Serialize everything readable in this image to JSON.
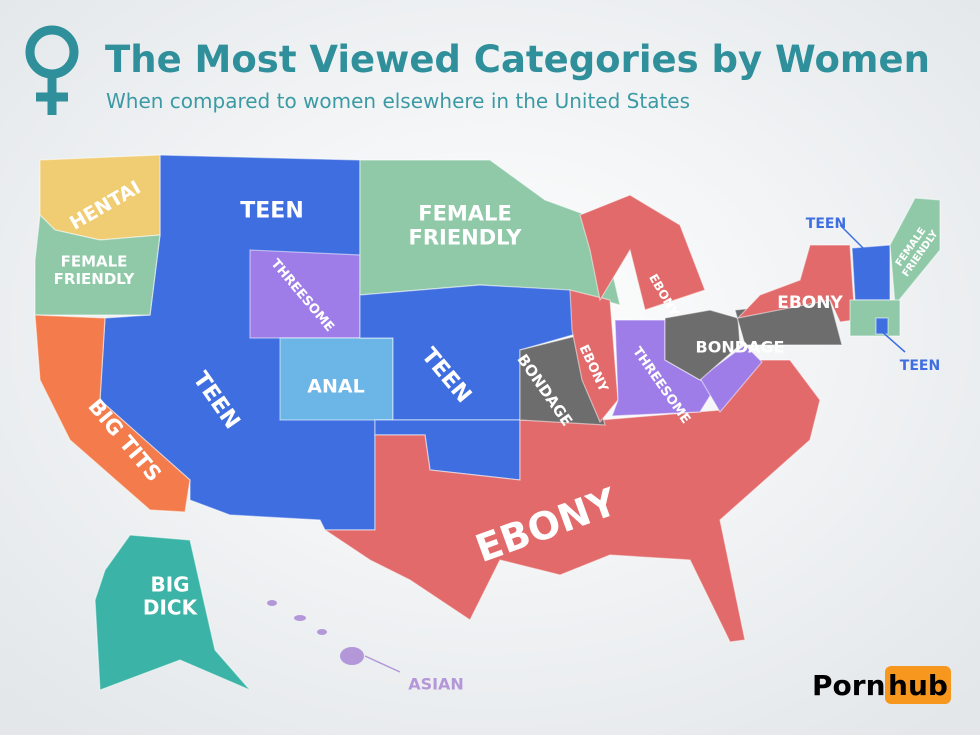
{
  "header": {
    "title": "The Most Viewed Categories by Women",
    "subtitle": "When compared to women elsewhere in the United States"
  },
  "labels": [
    {
      "lines": [
        "HENTAI"
      ]
    },
    {
      "lines": [
        "TEEN"
      ]
    },
    {
      "lines": [
        "FEMALE",
        "FRIENDLY"
      ]
    },
    {
      "lines": [
        "TEEN"
      ]
    },
    {
      "lines": [
        "FEMALE",
        "FRIENDLY"
      ]
    },
    {
      "lines": [
        "FEMALE",
        "FRIENDLY"
      ]
    },
    {
      "lines": [
        "THREESOME"
      ]
    },
    {
      "lines": [
        "EBONY"
      ]
    },
    {
      "lines": [
        "EBONY"
      ]
    },
    {
      "lines": [
        "BONDAGE"
      ]
    },
    {
      "lines": [
        "TEEN"
      ]
    },
    {
      "lines": [
        "ANAL"
      ]
    },
    {
      "lines": [
        "TEEN"
      ]
    },
    {
      "lines": [
        "BONDAGE"
      ]
    },
    {
      "lines": [
        "EBONY"
      ]
    },
    {
      "lines": [
        "THREESOME"
      ]
    },
    {
      "lines": [
        "TEEN"
      ]
    },
    {
      "lines": [
        "BIG TITS"
      ]
    },
    {
      "lines": [
        "EBONY"
      ]
    },
    {
      "lines": [
        "BIG",
        "DICK"
      ]
    },
    {
      "lines": [
        "ASIAN"
      ]
    }
  ],
  "logo": {
    "left": "Porn",
    "right": "hub"
  }
}
